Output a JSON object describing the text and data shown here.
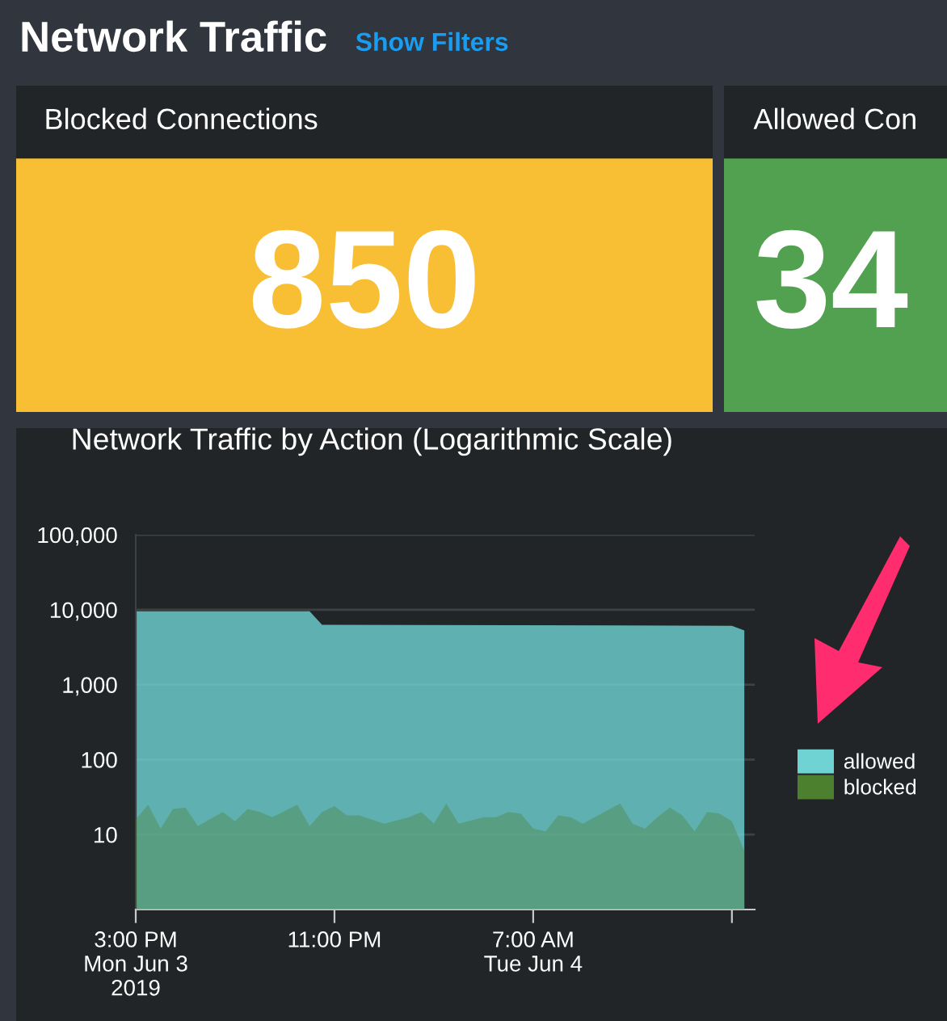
{
  "chart_data": [
    {
      "type": "other",
      "title": "Network Traffic",
      "annotations": [
        "Show Filters"
      ]
    },
    {
      "type": "other",
      "title": "Blocked Connections",
      "annotations": [
        "850"
      ],
      "color": "#f8bf34"
    },
    {
      "type": "other",
      "title": "Allowed Con",
      "annotations": [
        "34"
      ],
      "color": "#52a150"
    },
    {
      "type": "area",
      "title": "Network Traffic by Action (Logarithmic Scale)",
      "log": true,
      "grid": "y",
      "legend": "right",
      "xlim": [
        "2019-06-03T15:00",
        "2019-06-04T15:55"
      ],
      "xticks": [
        {
          "value": "2019-06-03T15:00",
          "label": "3:00 PM\nMon Jun 3\n2019"
        },
        {
          "value": "2019-06-03T23:00",
          "label": "11:00 PM"
        },
        {
          "value": "2019-06-04T07:00",
          "label": "7:00 AM\nTue Jun 4"
        },
        {
          "value": "2019-06-04T15:00",
          "label": null
        }
      ],
      "ylim": [
        1,
        100000
      ],
      "yticks": [
        {
          "value": 10,
          "label": "10"
        },
        {
          "value": 100,
          "label": "100"
        },
        {
          "value": 1000,
          "label": "1,000"
        },
        {
          "value": 10000,
          "label": "10,000"
        },
        {
          "value": 100000,
          "label": "100,000"
        }
      ],
      "series": [
        {
          "name": "allowed",
          "color": "#6fd3d3",
          "x": [
            "2019-06-03T15:00",
            "2019-06-03T22:00",
            "2019-06-03T22:30",
            "2019-06-04T15:00",
            "2019-06-04T15:30"
          ],
          "values": [
            9500,
            9500,
            6300,
            6100,
            5300
          ]
        },
        {
          "name": "blocked",
          "color": "#4c7f2e",
          "x": [
            "2019-06-03T15:00",
            "2019-06-03T15:30",
            "2019-06-03T16:00",
            "2019-06-03T16:30",
            "2019-06-03T17:00",
            "2019-06-03T17:30",
            "2019-06-03T18:30",
            "2019-06-03T19:00",
            "2019-06-03T19:30",
            "2019-06-03T20:00",
            "2019-06-03T20:30",
            "2019-06-03T21:30",
            "2019-06-03T22:00",
            "2019-06-03T22:30",
            "2019-06-03T23:00",
            "2019-06-03T23:30",
            "2019-06-04T00:00",
            "2019-06-04T01:00",
            "2019-06-04T02:00",
            "2019-06-04T02:30",
            "2019-06-04T03:00",
            "2019-06-04T03:30",
            "2019-06-04T04:00",
            "2019-06-04T05:00",
            "2019-06-04T05:30",
            "2019-06-04T06:00",
            "2019-06-04T06:30",
            "2019-06-04T07:00",
            "2019-06-04T07:30",
            "2019-06-04T08:00",
            "2019-06-04T08:30",
            "2019-06-04T09:00",
            "2019-06-04T10:30",
            "2019-06-04T11:00",
            "2019-06-04T11:30",
            "2019-06-04T12:00",
            "2019-06-04T12:30",
            "2019-06-04T13:00",
            "2019-06-04T13:30",
            "2019-06-04T14:00",
            "2019-06-04T14:30",
            "2019-06-04T15:00",
            "2019-06-04T15:30"
          ],
          "values": [
            16,
            25,
            12,
            22,
            23,
            13,
            20,
            15,
            22,
            20,
            17,
            25,
            13,
            20,
            24,
            18,
            18,
            14,
            17,
            20,
            14,
            26,
            14,
            17,
            17,
            20,
            19,
            12,
            11,
            18,
            17,
            14,
            26,
            14,
            12,
            17,
            23,
            18,
            11,
            20,
            19,
            15,
            6
          ]
        }
      ]
    }
  ]
}
